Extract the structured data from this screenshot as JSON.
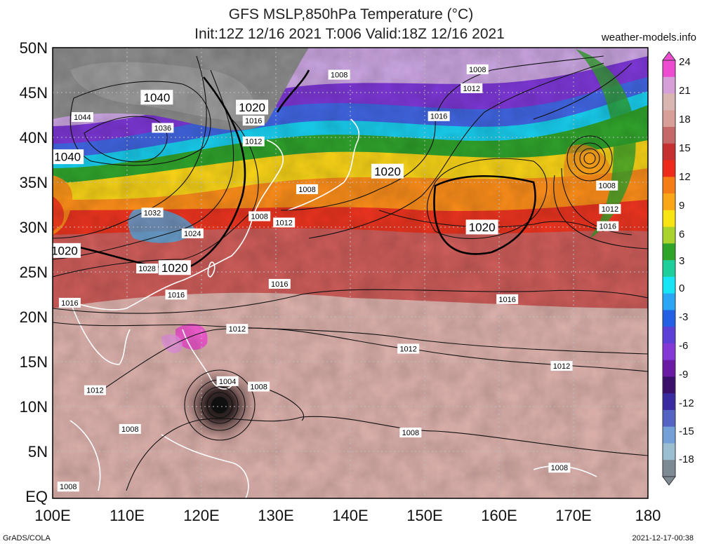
{
  "header": {
    "title_line1": "GFS MSLP,850hPa Temperature (°C)",
    "title_line2": "Init:12Z 12/16 2021 T:006 Valid:18Z 12/16 2021",
    "site": "weather-models.info"
  },
  "map": {
    "lat_labels": [
      "50N",
      "45N",
      "40N",
      "35N",
      "30N",
      "25N",
      "20N",
      "15N",
      "10N",
      "5N",
      "EQ"
    ],
    "lon_labels": [
      "100E",
      "110E",
      "120E",
      "130E",
      "140E",
      "150E",
      "160E",
      "170E",
      "180"
    ],
    "isobar_labels": [
      {
        "text": "1040",
        "lon": 114.0,
        "lat": 44.5,
        "big": true
      },
      {
        "text": "1044",
        "lon": 104.0,
        "lat": 42.3,
        "big": false
      },
      {
        "text": "1036",
        "lon": 114.8,
        "lat": 41.1,
        "big": false
      },
      {
        "text": "1040",
        "lon": 102.0,
        "lat": 37.9,
        "big": true
      },
      {
        "text": "1020",
        "lon": 126.8,
        "lat": 43.4,
        "big": true
      },
      {
        "text": "1016",
        "lon": 127.0,
        "lat": 41.9,
        "big": false
      },
      {
        "text": "1012",
        "lon": 127.0,
        "lat": 39.6,
        "big": false
      },
      {
        "text": "1008",
        "lon": 138.5,
        "lat": 47.0,
        "big": false
      },
      {
        "text": "1008",
        "lon": 157.1,
        "lat": 47.6,
        "big": false
      },
      {
        "text": "1012",
        "lon": 156.3,
        "lat": 45.5,
        "big": false
      },
      {
        "text": "1016",
        "lon": 151.9,
        "lat": 42.4,
        "big": false
      },
      {
        "text": "1020",
        "lon": 145.0,
        "lat": 36.3,
        "big": true
      },
      {
        "text": "1020",
        "lon": 157.7,
        "lat": 30.1,
        "big": true
      },
      {
        "text": "1008",
        "lon": 134.2,
        "lat": 34.3,
        "big": false
      },
      {
        "text": "1008",
        "lon": 127.8,
        "lat": 31.3,
        "big": false
      },
      {
        "text": "1012",
        "lon": 131.1,
        "lat": 30.6,
        "big": false
      },
      {
        "text": "1032",
        "lon": 113.4,
        "lat": 31.7,
        "big": false
      },
      {
        "text": "1024",
        "lon": 118.8,
        "lat": 29.4,
        "big": false
      },
      {
        "text": "1028",
        "lon": 112.7,
        "lat": 25.5,
        "big": false
      },
      {
        "text": "1020",
        "lon": 116.4,
        "lat": 25.6,
        "big": true
      },
      {
        "text": "1016",
        "lon": 116.6,
        "lat": 22.6,
        "big": false
      },
      {
        "text": "1016",
        "lon": 102.3,
        "lat": 21.7,
        "big": false
      },
      {
        "text": "1020",
        "lon": 101.6,
        "lat": 27.5,
        "big": true
      },
      {
        "text": "1016",
        "lon": 130.5,
        "lat": 23.8,
        "big": false
      },
      {
        "text": "1016",
        "lon": 161.1,
        "lat": 22.1,
        "big": false
      },
      {
        "text": "1012",
        "lon": 124.8,
        "lat": 18.8,
        "big": false
      },
      {
        "text": "1012",
        "lon": 147.8,
        "lat": 16.6,
        "big": false
      },
      {
        "text": "1012",
        "lon": 168.4,
        "lat": 14.7,
        "big": false
      },
      {
        "text": "1004",
        "lon": 123.5,
        "lat": 13.0,
        "big": false
      },
      {
        "text": "1008",
        "lon": 127.7,
        "lat": 12.4,
        "big": false
      },
      {
        "text": "1012",
        "lon": 105.7,
        "lat": 12.0,
        "big": false
      },
      {
        "text": "1008",
        "lon": 110.4,
        "lat": 7.7,
        "big": false
      },
      {
        "text": "1008",
        "lon": 148.1,
        "lat": 7.3,
        "big": false
      },
      {
        "text": "1008",
        "lon": 168.1,
        "lat": 3.4,
        "big": false
      },
      {
        "text": "1008",
        "lon": 102.1,
        "lat": 1.3,
        "big": false
      },
      {
        "text": "1008",
        "lon": 174.5,
        "lat": 34.7,
        "big": false
      },
      {
        "text": "1012",
        "lon": 174.9,
        "lat": 32.1,
        "big": false
      },
      {
        "text": "1016",
        "lon": 174.6,
        "lat": 30.2,
        "big": false
      }
    ],
    "lows": [
      {
        "lon": 122.5,
        "lat": 10.4,
        "name": "typhoon"
      },
      {
        "lon": 171.3,
        "lat": 37.8,
        "name": "north-pacific-low"
      }
    ],
    "highs": [
      {
        "lon": 108.0,
        "lat": 42.0,
        "name": "siberian-high"
      },
      {
        "lon": 154.0,
        "lat": 31.5,
        "name": "pacific-high"
      }
    ]
  },
  "colorbar": {
    "labels": [
      "24",
      "21",
      "18",
      "15",
      "12",
      "9",
      "6",
      "3",
      "0",
      "-3",
      "-6",
      "-9",
      "-12",
      "-15",
      "-18"
    ],
    "colors": [
      "#ee4cd0",
      "#d59fd8",
      "#d9b6b2",
      "#d89f99",
      "#c56868",
      "#c63030",
      "#ee2b1b",
      "#f57d18",
      "#faa619",
      "#f8e313",
      "#aad32b",
      "#2fa429",
      "#1fcf9b",
      "#17e4f4",
      "#2aa6f4",
      "#2460e4",
      "#5b3fd7",
      "#8439d6",
      "#6b1ba3",
      "#3a106b",
      "#3a2ca0",
      "#5563c2",
      "#74a0d8",
      "#9bbfd0",
      "#7d8a93"
    ]
  },
  "footer": {
    "left": "GrADS/COLA",
    "right": "2021-12-17-00:38"
  }
}
